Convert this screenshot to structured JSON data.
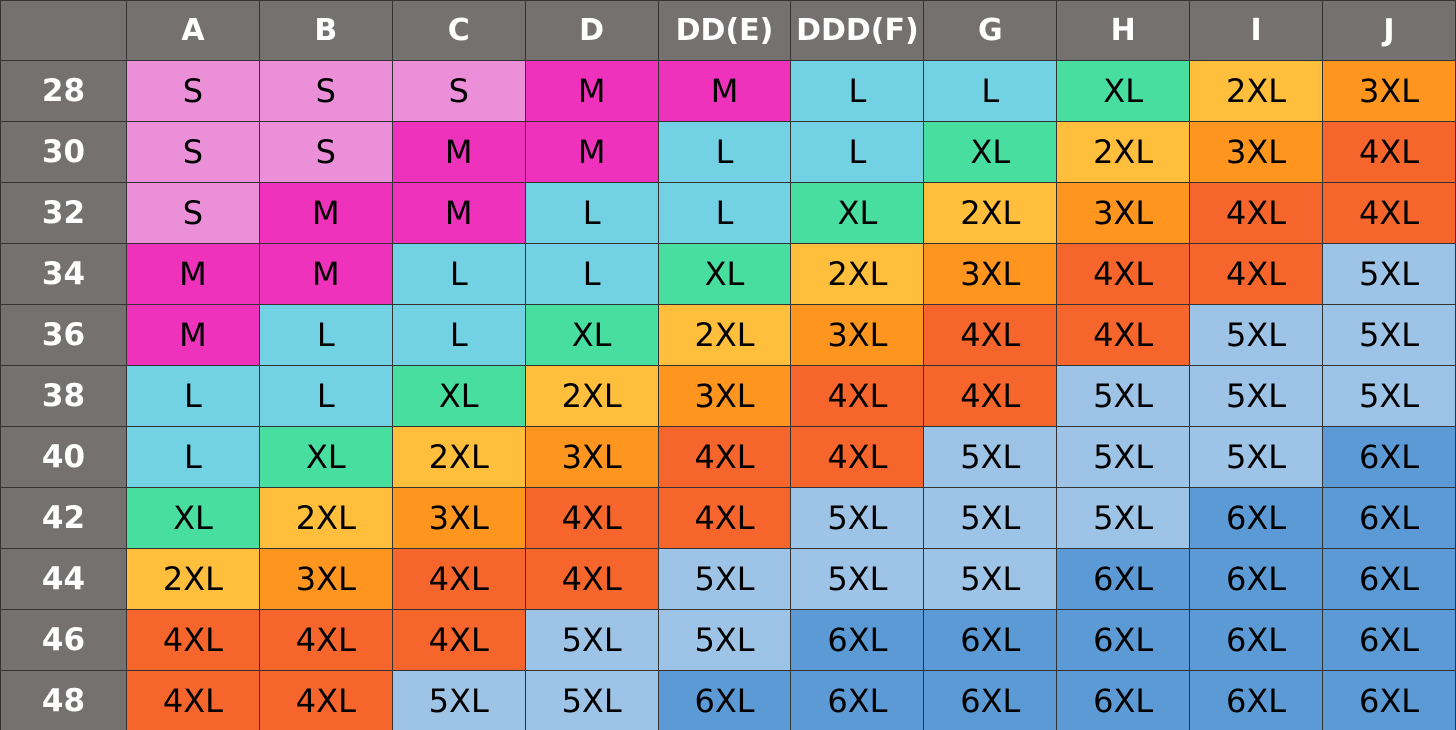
{
  "table": {
    "columns": [
      "A",
      "B",
      "C",
      "D",
      "DD(E)",
      "DDD(F)",
      "G",
      "H",
      "I",
      "J"
    ],
    "rows": [
      {
        "band": "28",
        "cells": [
          "S",
          "S",
          "S",
          "M",
          "M",
          "L",
          "L",
          "XL",
          "2XL",
          "3XL"
        ]
      },
      {
        "band": "30",
        "cells": [
          "S",
          "S",
          "M",
          "M",
          "L",
          "L",
          "XL",
          "2XL",
          "3XL",
          "4XL"
        ]
      },
      {
        "band": "32",
        "cells": [
          "S",
          "M",
          "M",
          "L",
          "L",
          "XL",
          "2XL",
          "3XL",
          "4XL",
          "4XL"
        ]
      },
      {
        "band": "34",
        "cells": [
          "M",
          "M",
          "L",
          "L",
          "XL",
          "2XL",
          "3XL",
          "4XL",
          "4XL",
          "5XL"
        ]
      },
      {
        "band": "36",
        "cells": [
          "M",
          "L",
          "L",
          "XL",
          "2XL",
          "3XL",
          "4XL",
          "4XL",
          "5XL",
          "5XL"
        ]
      },
      {
        "band": "38",
        "cells": [
          "L",
          "L",
          "XL",
          "2XL",
          "3XL",
          "4XL",
          "4XL",
          "5XL",
          "5XL",
          "5XL"
        ]
      },
      {
        "band": "40",
        "cells": [
          "L",
          "XL",
          "2XL",
          "3XL",
          "4XL",
          "4XL",
          "5XL",
          "5XL",
          "5XL",
          "6XL"
        ]
      },
      {
        "band": "42",
        "cells": [
          "XL",
          "2XL",
          "3XL",
          "4XL",
          "4XL",
          "5XL",
          "5XL",
          "5XL",
          "6XL",
          "6XL"
        ]
      },
      {
        "band": "44",
        "cells": [
          "2XL",
          "3XL",
          "4XL",
          "4XL",
          "5XL",
          "5XL",
          "5XL",
          "6XL",
          "6XL",
          "6XL"
        ]
      },
      {
        "band": "46",
        "cells": [
          "4XL",
          "4XL",
          "4XL",
          "5XL",
          "5XL",
          "6XL",
          "6XL",
          "6XL",
          "6XL",
          "6XL"
        ]
      },
      {
        "band": "48",
        "cells": [
          "4XL",
          "4XL",
          "5XL",
          "5XL",
          "6XL",
          "6XL",
          "6XL",
          "6XL",
          "6XL",
          "6XL"
        ]
      }
    ],
    "size_colors": {
      "S": "#eb8fd9",
      "M": "#ee32bb",
      "L": "#72d2e4",
      "XL": "#48dea0",
      "2XL": "#ffbe3b",
      "3XL": "#fe951e",
      "4XL": "#f6652c",
      "5XL": "#9dc3e6",
      "6XL": "#5b9ad5"
    }
  }
}
